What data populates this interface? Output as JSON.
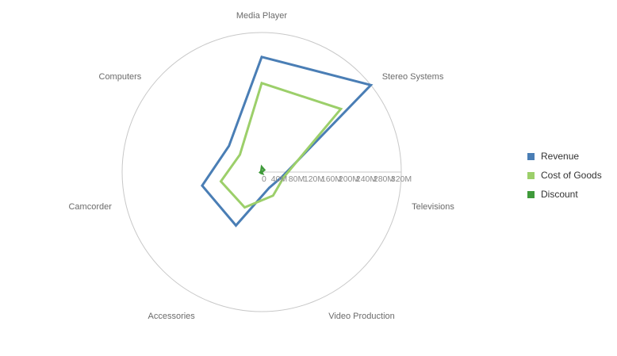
{
  "chart_data": {
    "type": "radar",
    "categories": [
      "Media Player",
      "Stereo Systems",
      "Televisions",
      "Video Production",
      "Accessories",
      "Camcorder",
      "Computers"
    ],
    "radial_ticks": [
      "0",
      "40M",
      "80M",
      "120M",
      "160M",
      "200M",
      "240M",
      "280M",
      "320M"
    ],
    "rmax": 320,
    "units": "M",
    "series": [
      {
        "name": "Revenue",
        "color": "#4a7eb5",
        "values": [
          264,
          320,
          48,
          40,
          136,
          140,
          96
        ]
      },
      {
        "name": "Cost of Goods",
        "color": "#9ccf6a",
        "values": [
          204,
          232,
          52,
          60,
          90,
          96,
          64
        ]
      },
      {
        "name": "Discount",
        "color": "#3f9a3a",
        "values": [
          12,
          8,
          0,
          4,
          3,
          4,
          2
        ]
      }
    ],
    "legend_position": "right",
    "grid": "outer circle only"
  }
}
